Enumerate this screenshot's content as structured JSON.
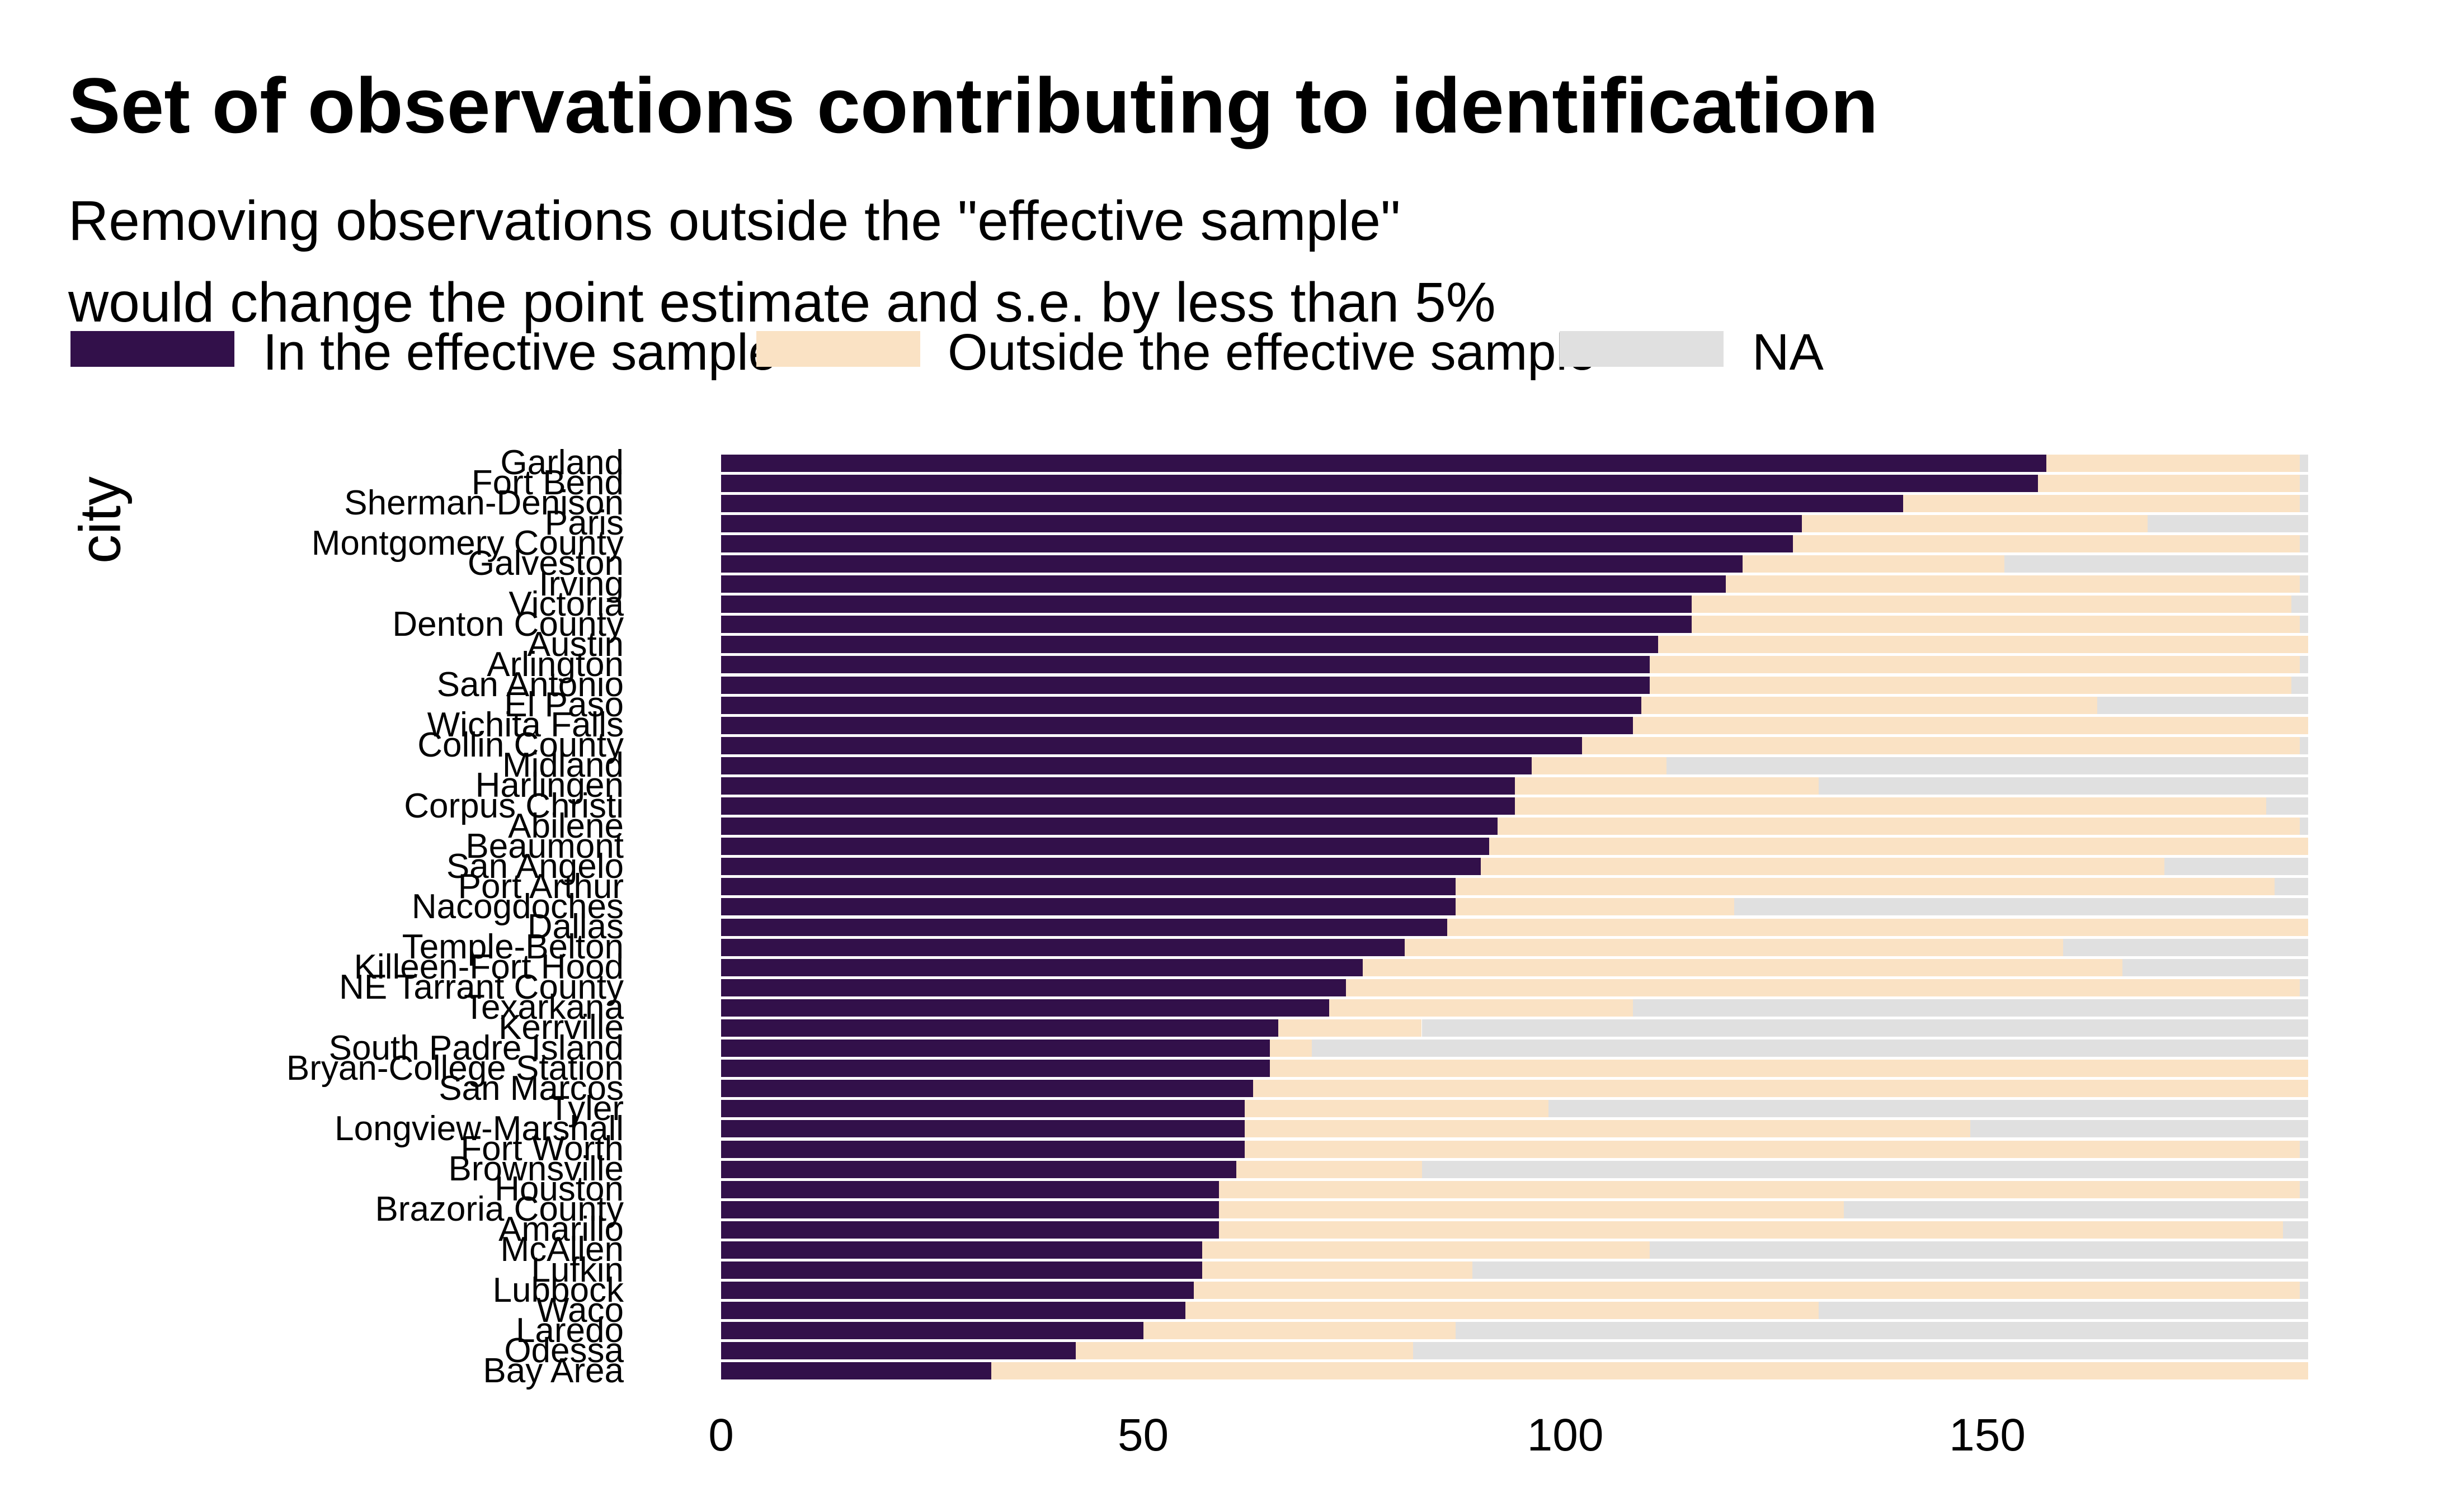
{
  "title": "Set of observations contributing to identification",
  "subtitle_line1": "Removing observations outside the \"effective sample\"",
  "subtitle_line2": "would change the point estimate and s.e. by less than 5%",
  "y_axis_title": "city",
  "legend": {
    "items": [
      {
        "label": "In the effective sample",
        "color": "#32104a"
      },
      {
        "label": "Outside the effective sample",
        "color": "#fae2c4"
      },
      {
        "label": "NA",
        "color": "#e0e0e0"
      }
    ]
  },
  "x_axis": {
    "tick_labels": [
      "0",
      "50",
      "100",
      "150"
    ],
    "tick_values": [
      0,
      50,
      100,
      150
    ],
    "max": 188
  },
  "chart_data": {
    "type": "bar",
    "orientation": "horizontal",
    "stacked": true,
    "title": "Set of observations contributing to identification",
    "xlabel": "",
    "ylabel": "city",
    "xlim": [
      0,
      188
    ],
    "total_per_city": 188,
    "legend_position": "top",
    "categories": [
      "Garland",
      "Fort Bend",
      "Sherman-Denison",
      "Paris",
      "Montgomery County",
      "Galveston",
      "Irving",
      "Victoria",
      "Denton County",
      "Austin",
      "Arlington",
      "San Antonio",
      "El Paso",
      "Wichita Falls",
      "Collin County",
      "Midland",
      "Harlingen",
      "Corpus Christi",
      "Abilene",
      "Beaumont",
      "San Angelo",
      "Port Arthur",
      "Nacogdoches",
      "Dallas",
      "Temple-Belton",
      "Killeen-Fort Hood",
      "NE Tarrant County",
      "Texarkana",
      "Kerrville",
      "South Padre Island",
      "Bryan-College Station",
      "San Marcos",
      "Tyler",
      "Longview-Marshall",
      "Fort Worth",
      "Brownsville",
      "Houston",
      "Brazoria County",
      "Amarillo",
      "McAllen",
      "Lufkin",
      "Lubbock",
      "Waco",
      "Laredo",
      "Odessa",
      "Bay Area"
    ],
    "series": [
      {
        "name": "In the effective sample",
        "values": [
          157,
          156,
          140,
          128,
          127,
          121,
          119,
          115,
          115,
          111,
          110,
          110,
          109,
          108,
          102,
          96,
          94,
          94,
          92,
          91,
          90,
          87,
          87,
          86,
          81,
          76,
          74,
          72,
          66,
          65,
          65,
          63,
          62,
          62,
          62,
          61,
          59,
          59,
          59,
          57,
          57,
          56,
          55,
          50,
          42,
          32
        ]
      },
      {
        "name": "Outside the effective sample",
        "values": [
          30,
          31,
          47,
          41,
          60,
          31,
          68,
          71,
          72,
          77,
          77,
          76,
          54,
          80,
          85,
          16,
          36,
          89,
          95,
          97,
          81,
          97,
          33,
          102,
          78,
          90,
          113,
          36,
          17,
          5,
          123,
          125,
          36,
          86,
          125,
          22,
          128,
          74,
          126,
          53,
          32,
          131,
          75,
          37,
          40,
          156
        ]
      },
      {
        "name": "NA",
        "values": [
          1,
          1,
          1,
          19,
          1,
          36,
          1,
          2,
          1,
          0,
          1,
          2,
          25,
          0,
          1,
          76,
          58,
          5,
          1,
          0,
          17,
          4,
          68,
          0,
          29,
          22,
          1,
          80,
          105,
          118,
          0,
          0,
          90,
          40,
          1,
          105,
          1,
          55,
          3,
          78,
          99,
          1,
          58,
          101,
          106,
          0
        ]
      }
    ]
  }
}
